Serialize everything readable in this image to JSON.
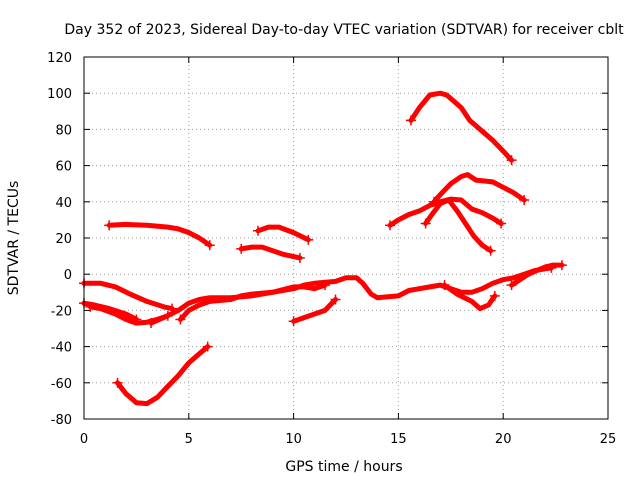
{
  "chart_data": {
    "type": "line",
    "title": "Day 352 of 2023, Sidereal Day-to-day VTEC variation (SDTVAR) for receiver cblt",
    "xlabel": "GPS time / hours",
    "ylabel": "SDTVAR / TECUs",
    "xlim": [
      0,
      25
    ],
    "ylim": [
      -80,
      120
    ],
    "xticks": [
      "0",
      "5",
      "10",
      "15",
      "20",
      "25"
    ],
    "yticks": [
      "-80",
      "-60",
      "-40",
      "-20",
      "0",
      "20",
      "40",
      "60",
      "80",
      "100",
      "120"
    ],
    "grid": true,
    "line_color": "#ff0000",
    "series": [
      {
        "name": "s1",
        "points": [
          [
            0,
            -5
          ],
          [
            0.8,
            -5
          ],
          [
            1.5,
            -7
          ],
          [
            2.2,
            -11
          ],
          [
            3,
            -15
          ],
          [
            3.8,
            -18
          ],
          [
            4.2,
            -19
          ]
        ]
      },
      {
        "name": "s2",
        "points": [
          [
            0,
            -16
          ],
          [
            0.5,
            -17
          ],
          [
            1.2,
            -19
          ],
          [
            2,
            -22
          ],
          [
            2.5,
            -25
          ]
        ]
      },
      {
        "name": "s3",
        "points": [
          [
            0.3,
            -18
          ],
          [
            0.8,
            -19
          ],
          [
            1.5,
            -22
          ],
          [
            2,
            -25
          ],
          [
            2.5,
            -27
          ],
          [
            3,
            -26.5
          ],
          [
            3.5,
            -25
          ],
          [
            4,
            -23
          ]
        ]
      },
      {
        "name": "s4",
        "points": [
          [
            1.6,
            -60
          ],
          [
            2,
            -66
          ],
          [
            2.5,
            -71
          ],
          [
            3,
            -71.5
          ],
          [
            3.5,
            -68
          ],
          [
            4,
            -62
          ],
          [
            4.5,
            -56
          ],
          [
            5,
            -49
          ],
          [
            5.5,
            -44
          ],
          [
            5.9,
            -40
          ]
        ]
      },
      {
        "name": "s5",
        "points": [
          [
            1.2,
            27
          ],
          [
            2,
            27.5
          ],
          [
            3,
            27
          ],
          [
            4,
            26
          ],
          [
            4.5,
            25
          ],
          [
            5,
            23
          ],
          [
            5.5,
            20
          ],
          [
            6,
            16
          ]
        ]
      },
      {
        "name": "s6",
        "points": [
          [
            3.2,
            -27
          ],
          [
            3.8,
            -24
          ],
          [
            4.5,
            -20
          ],
          [
            5,
            -16
          ],
          [
            5.5,
            -14
          ],
          [
            6,
            -13
          ],
          [
            7,
            -13
          ],
          [
            8,
            -12
          ],
          [
            9,
            -10
          ],
          [
            10,
            -8
          ],
          [
            10.5,
            -6
          ],
          [
            11,
            -5
          ],
          [
            12,
            -4
          ],
          [
            12.5,
            -2
          ],
          [
            13,
            -2
          ],
          [
            13.3,
            -5
          ],
          [
            13.7,
            -11
          ],
          [
            14,
            -13
          ],
          [
            15,
            -12
          ],
          [
            15.5,
            -9
          ],
          [
            16,
            -8
          ],
          [
            16.5,
            -7
          ],
          [
            17,
            -6
          ],
          [
            17.5,
            -8
          ],
          [
            18,
            -10
          ],
          [
            18.5,
            -10
          ],
          [
            19,
            -8
          ],
          [
            19.5,
            -5
          ],
          [
            20,
            -3
          ],
          [
            20.5,
            -2
          ],
          [
            21,
            0
          ],
          [
            21.5,
            2
          ],
          [
            22,
            3
          ],
          [
            22.3,
            3.5
          ]
        ]
      },
      {
        "name": "s7",
        "points": [
          [
            4.6,
            -25
          ],
          [
            5,
            -20
          ],
          [
            5.5,
            -17
          ],
          [
            6,
            -15
          ],
          [
            7,
            -14
          ],
          [
            7.5,
            -12
          ],
          [
            8,
            -11
          ],
          [
            9,
            -10
          ],
          [
            10,
            -7
          ],
          [
            10.5,
            -7
          ],
          [
            11,
            -8
          ],
          [
            11.5,
            -6
          ]
        ]
      },
      {
        "name": "s8",
        "points": [
          [
            7.5,
            14
          ],
          [
            8,
            15
          ],
          [
            8.5,
            15
          ],
          [
            9,
            13
          ],
          [
            9.5,
            11
          ],
          [
            10.3,
            9
          ]
        ]
      },
      {
        "name": "s9",
        "points": [
          [
            8.3,
            24
          ],
          [
            8.8,
            26
          ],
          [
            9.3,
            26
          ],
          [
            10,
            23
          ],
          [
            10.7,
            19
          ]
        ]
      },
      {
        "name": "s10",
        "points": [
          [
            10,
            -26
          ],
          [
            10.5,
            -24
          ],
          [
            11,
            -22
          ],
          [
            11.5,
            -20
          ],
          [
            12,
            -14
          ]
        ]
      },
      {
        "name": "s11",
        "points": [
          [
            14.6,
            27
          ],
          [
            15,
            30
          ],
          [
            15.5,
            33
          ],
          [
            16,
            35
          ],
          [
            16.5,
            38
          ],
          [
            17,
            40
          ],
          [
            17.5,
            41.5
          ],
          [
            18,
            41
          ],
          [
            18.5,
            36
          ],
          [
            19,
            34
          ],
          [
            19.5,
            31
          ],
          [
            19.9,
            28
          ]
        ]
      },
      {
        "name": "s12",
        "points": [
          [
            15.6,
            85
          ],
          [
            16,
            92
          ],
          [
            16.5,
            99
          ],
          [
            17,
            100
          ],
          [
            17.3,
            99
          ],
          [
            17.6,
            96
          ],
          [
            18,
            92
          ],
          [
            18.4,
            85
          ],
          [
            19,
            79
          ],
          [
            19.5,
            74
          ],
          [
            20,
            68
          ],
          [
            20.4,
            63
          ]
        ]
      },
      {
        "name": "s13",
        "points": [
          [
            16.3,
            28
          ],
          [
            16.6,
            33
          ],
          [
            17,
            39
          ],
          [
            17.4,
            41
          ],
          [
            17.8,
            35
          ],
          [
            18.2,
            28
          ],
          [
            18.6,
            21
          ],
          [
            19,
            16
          ],
          [
            19.4,
            13
          ]
        ]
      },
      {
        "name": "s14",
        "points": [
          [
            16.7,
            40
          ],
          [
            17,
            44
          ],
          [
            17.5,
            50
          ],
          [
            18,
            54
          ],
          [
            18.3,
            55
          ],
          [
            18.7,
            52
          ],
          [
            19.5,
            51
          ],
          [
            20,
            48
          ],
          [
            20.5,
            45
          ],
          [
            21,
            41
          ]
        ]
      },
      {
        "name": "s15",
        "points": [
          [
            17.2,
            -6
          ],
          [
            17.8,
            -11
          ],
          [
            18.5,
            -15
          ],
          [
            18.9,
            -19
          ],
          [
            19.3,
            -17
          ],
          [
            19.6,
            -12
          ]
        ]
      },
      {
        "name": "s16",
        "points": [
          [
            20.4,
            -6
          ],
          [
            20.8,
            -3
          ],
          [
            21.2,
            0
          ],
          [
            21.6,
            2
          ],
          [
            22,
            4
          ],
          [
            22.4,
            5
          ],
          [
            22.8,
            5
          ]
        ]
      }
    ]
  }
}
